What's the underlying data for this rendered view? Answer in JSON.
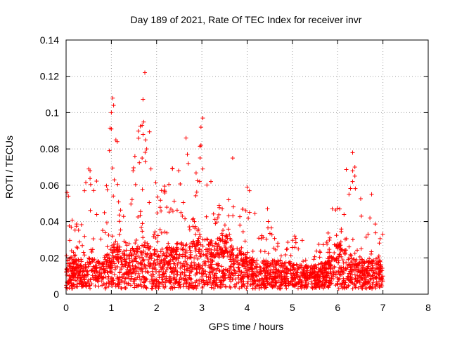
{
  "chart_data": {
    "type": "scatter",
    "title": "Day 189 of 2021, Rate Of TEC Index for receiver invr",
    "xlabel": "GPS time / hours",
    "ylabel": "ROTI / TECUs",
    "xlim": [
      0,
      8
    ],
    "ylim": [
      0,
      0.14
    ],
    "xticks": [
      0,
      1,
      2,
      3,
      4,
      5,
      6,
      7,
      8
    ],
    "xtick_labels": [
      "0",
      "1",
      "2",
      "3",
      "4",
      "5",
      "6",
      "7",
      "8"
    ],
    "yticks": [
      0,
      0.02,
      0.04,
      0.06,
      0.08,
      0.1,
      0.12,
      0.14
    ],
    "ytick_labels": [
      "0",
      "0.02",
      "0.04",
      "0.06",
      "0.08",
      "0.1",
      "0.12",
      "0.14"
    ],
    "grid": true,
    "marker": "+",
    "color": "#ff0000",
    "data_x_range": [
      0,
      7
    ],
    "envelope_hours": [
      0,
      0.1,
      0.25,
      0.5,
      0.75,
      0.9,
      1.0,
      1.1,
      1.25,
      1.5,
      1.75,
      2.0,
      2.25,
      2.5,
      2.75,
      3.0,
      3.25,
      3.5,
      3.75,
      4.0,
      4.25,
      4.5,
      4.75,
      5.0,
      5.25,
      5.5,
      5.75,
      5.9,
      6.0,
      6.25,
      6.5,
      6.75,
      7.0
    ],
    "envelope_typical_roti": [
      0.012,
      0.014,
      0.012,
      0.013,
      0.012,
      0.015,
      0.018,
      0.02,
      0.016,
      0.018,
      0.02,
      0.016,
      0.018,
      0.02,
      0.02,
      0.022,
      0.02,
      0.024,
      0.018,
      0.014,
      0.012,
      0.012,
      0.012,
      0.011,
      0.01,
      0.01,
      0.012,
      0.016,
      0.02,
      0.015,
      0.012,
      0.012,
      0.012
    ],
    "envelope_peak_roti": [
      0.056,
      0.04,
      0.045,
      0.07,
      0.06,
      0.062,
      0.108,
      0.085,
      0.045,
      0.075,
      0.122,
      0.06,
      0.06,
      0.086,
      0.05,
      0.097,
      0.05,
      0.056,
      0.075,
      0.059,
      0.048,
      0.04,
      0.03,
      0.032,
      0.03,
      0.025,
      0.035,
      0.046,
      0.048,
      0.078,
      0.055,
      0.04,
      0.04
    ],
    "notable_points": [
      {
        "x": 1.74,
        "y": 0.122
      },
      {
        "x": 1.03,
        "y": 0.108
      },
      {
        "x": 1.05,
        "y": 0.104
      },
      {
        "x": 1.0,
        "y": 0.1
      },
      {
        "x": 3.02,
        "y": 0.097
      },
      {
        "x": 2.98,
        "y": 0.092
      },
      {
        "x": 1.68,
        "y": 0.093
      },
      {
        "x": 1.7,
        "y": 0.088
      },
      {
        "x": 1.0,
        "y": 0.091
      },
      {
        "x": 2.65,
        "y": 0.086
      },
      {
        "x": 1.1,
        "y": 0.085
      },
      {
        "x": 1.13,
        "y": 0.084
      },
      {
        "x": 2.98,
        "y": 0.082
      },
      {
        "x": 1.78,
        "y": 0.08
      },
      {
        "x": 6.33,
        "y": 0.078
      },
      {
        "x": 2.68,
        "y": 0.077
      },
      {
        "x": 3.68,
        "y": 0.075
      },
      {
        "x": 1.68,
        "y": 0.075
      },
      {
        "x": 1.52,
        "y": 0.076
      },
      {
        "x": 1.75,
        "y": 0.073
      },
      {
        "x": 2.7,
        "y": 0.072
      },
      {
        "x": 0.5,
        "y": 0.069
      },
      {
        "x": 0.53,
        "y": 0.068
      },
      {
        "x": 6.38,
        "y": 0.07
      },
      {
        "x": 1.48,
        "y": 0.068
      },
      {
        "x": 3.02,
        "y": 0.069
      },
      {
        "x": 2.95,
        "y": 0.062
      },
      {
        "x": 3.2,
        "y": 0.062
      },
      {
        "x": 4.0,
        "y": 0.059
      },
      {
        "x": 6.33,
        "y": 0.062
      },
      {
        "x": 6.38,
        "y": 0.065
      },
      {
        "x": 0.02,
        "y": 0.056
      },
      {
        "x": 0.05,
        "y": 0.054
      },
      {
        "x": 6.75,
        "y": 0.055
      },
      {
        "x": 6.25,
        "y": 0.055
      },
      {
        "x": 4.05,
        "y": 0.057
      },
      {
        "x": 3.45,
        "y": 0.047
      },
      {
        "x": 4.45,
        "y": 0.047
      },
      {
        "x": 5.88,
        "y": 0.047
      },
      {
        "x": 5.05,
        "y": 0.032
      }
    ]
  }
}
